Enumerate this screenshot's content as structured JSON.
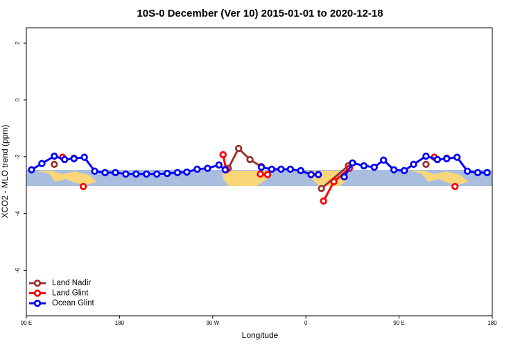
{
  "chart_data": {
    "type": "line",
    "title": "10S-0 December (Ver 10)   2015-01-01 to 2020-12-18",
    "x_label": "Longitude",
    "y_label": "XCO2 - MLO trend (ppm)",
    "xlim": [
      90,
      540
    ],
    "ylim": [
      -7.6,
      2.54
    ],
    "xticks": [
      {
        "value": 90,
        "label": "90 E"
      },
      180,
      {
        "value": 270,
        "label": "90 W"
      },
      {
        "value": 360,
        "label": "0"
      },
      {
        "value": 450,
        "label": "90 E"
      },
      {
        "value": 540,
        "label": "180"
      }
    ],
    "yticks": [
      2,
      0,
      -2,
      -4,
      -6
    ],
    "legend": "bottom-left",
    "series": [
      {
        "name": "Land Nadir",
        "color": "#993333",
        "x": [
          117,
          null,
          136,
          null,
          285,
          295,
          306,
          317,
          null,
          375,
          401,
          null,
          476,
          null,
          496
        ],
        "values": [
          -2.27,
          null,
          -2.05,
          null,
          -2.41,
          -1.71,
          -2.1,
          -2.35,
          null,
          -3.12,
          -2.32,
          null,
          -2.27,
          null,
          -2.05
        ]
      },
      {
        "name": "Land Glint",
        "color": "#ff0000",
        "x": [
          125,
          null,
          145,
          null,
          280,
          283,
          null,
          316,
          323,
          null,
          377,
          387,
          402,
          null,
          484,
          null,
          504
        ],
        "values": [
          -2.02,
          null,
          -3.05,
          null,
          -1.93,
          -2.46,
          null,
          -2.61,
          -2.63,
          null,
          -3.56,
          -2.88,
          -2.41,
          null,
          -2.02,
          null,
          -3.05
        ]
      },
      {
        "name": "Ocean Glint",
        "color": "#0000ff",
        "x": [
          95,
          105,
          117,
          127,
          136,
          146,
          156,
          166,
          176,
          186,
          196,
          206,
          216,
          226,
          236,
          245,
          255,
          265,
          276,
          282,
          null,
          317,
          327,
          336,
          345,
          355,
          365,
          372,
          null,
          397,
          405,
          416,
          426,
          435,
          445,
          455,
          464,
          476,
          487,
          496,
          506,
          516,
          526,
          535
        ],
        "values": [
          -2.46,
          -2.24,
          -1.98,
          -2.1,
          -2.07,
          -2.02,
          -2.51,
          -2.56,
          -2.56,
          -2.61,
          -2.61,
          -2.61,
          -2.61,
          -2.59,
          -2.56,
          -2.54,
          -2.44,
          -2.41,
          -2.29,
          -2.46,
          null,
          -2.37,
          -2.44,
          -2.44,
          -2.44,
          -2.49,
          -2.63,
          -2.63,
          null,
          -2.71,
          -2.22,
          -2.32,
          -2.37,
          -2.12,
          -2.46,
          -2.49,
          -2.27,
          -1.98,
          -2.1,
          -2.07,
          -2.02,
          -2.51,
          -2.56,
          -2.56
        ]
      }
    ]
  }
}
